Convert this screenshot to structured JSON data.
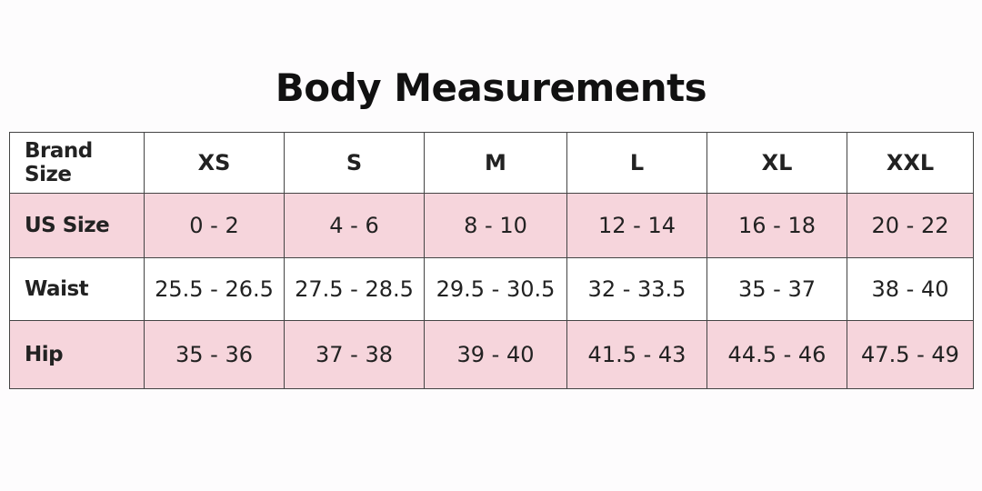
{
  "title": "Body Measurements",
  "table": {
    "rows": [
      [
        "Brand Size",
        "XS",
        "S",
        "M",
        "L",
        "XL",
        "XXL"
      ],
      [
        "US Size",
        "0 - 2",
        "4 - 6",
        "8 - 10",
        "12 - 14",
        "16 - 18",
        "20 - 22"
      ],
      [
        "Waist",
        "25.5 - 26.5",
        "27.5 - 28.5",
        "29.5 - 30.5",
        "32 - 33.5",
        "35 - 37",
        "38 - 40"
      ],
      [
        "Hip",
        "35 - 36",
        "37 - 38",
        "39 - 40",
        "41.5 - 43",
        "44.5 - 46",
        "47.5 - 49"
      ]
    ]
  }
}
